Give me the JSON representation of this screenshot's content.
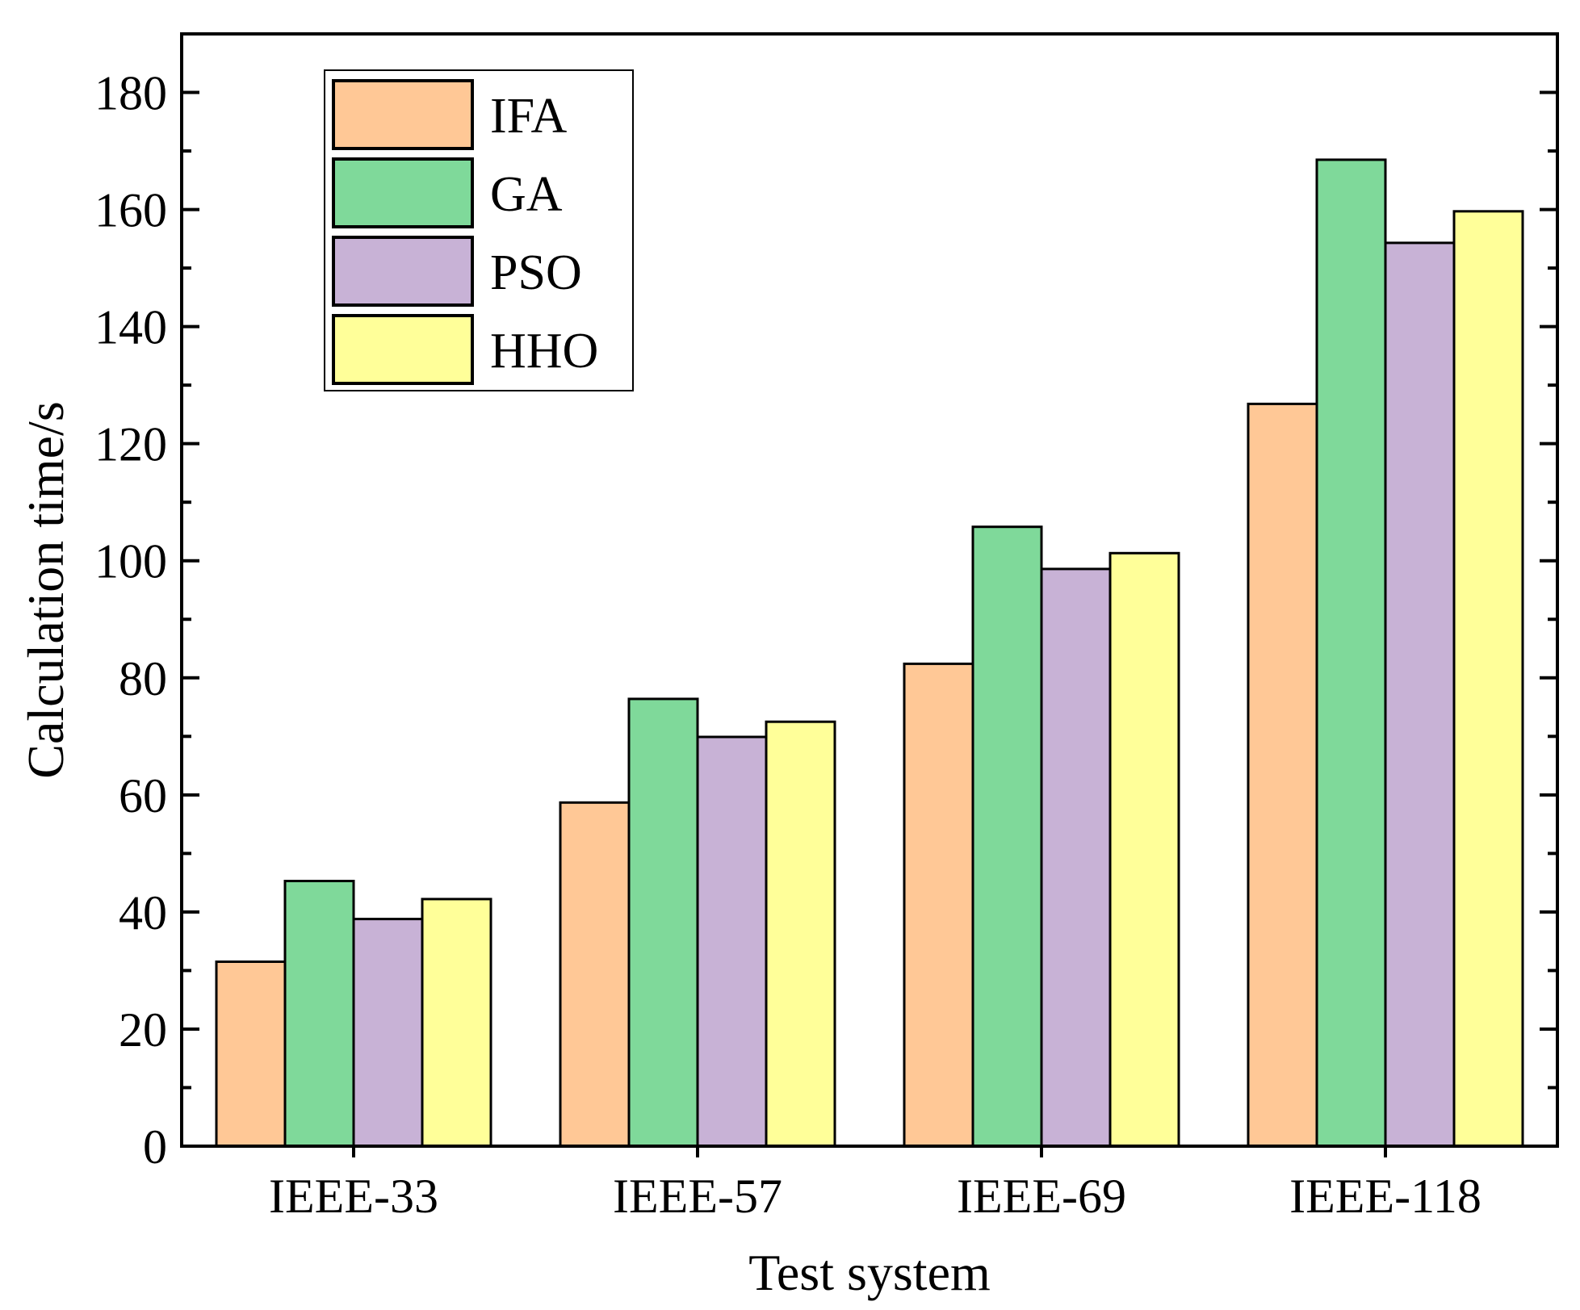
{
  "chart_data": {
    "type": "bar",
    "title": "",
    "xlabel": "Test system",
    "ylabel": "Calculation time/s",
    "categories": [
      "IEEE-33",
      "IEEE-57",
      "IEEE-69",
      "IEEE-118"
    ],
    "series": [
      {
        "name": "IFA",
        "color": "#FFC896",
        "values": [
          31.5,
          58.7,
          82.4,
          126.8
        ]
      },
      {
        "name": "GA",
        "color": "#7FD99A",
        "values": [
          45.3,
          76.4,
          105.8,
          168.5
        ]
      },
      {
        "name": "PSO",
        "color": "#C8B2D6",
        "values": [
          38.8,
          69.9,
          98.6,
          154.3
        ]
      },
      {
        "name": "HHO",
        "color": "#FFFF99",
        "values": [
          42.2,
          72.5,
          101.3,
          159.7
        ]
      }
    ],
    "ylim": [
      0,
      190
    ],
    "yticks": [
      0,
      20,
      40,
      60,
      80,
      100,
      120,
      140,
      160,
      180
    ],
    "grid": false,
    "legend_position": "top-left"
  }
}
